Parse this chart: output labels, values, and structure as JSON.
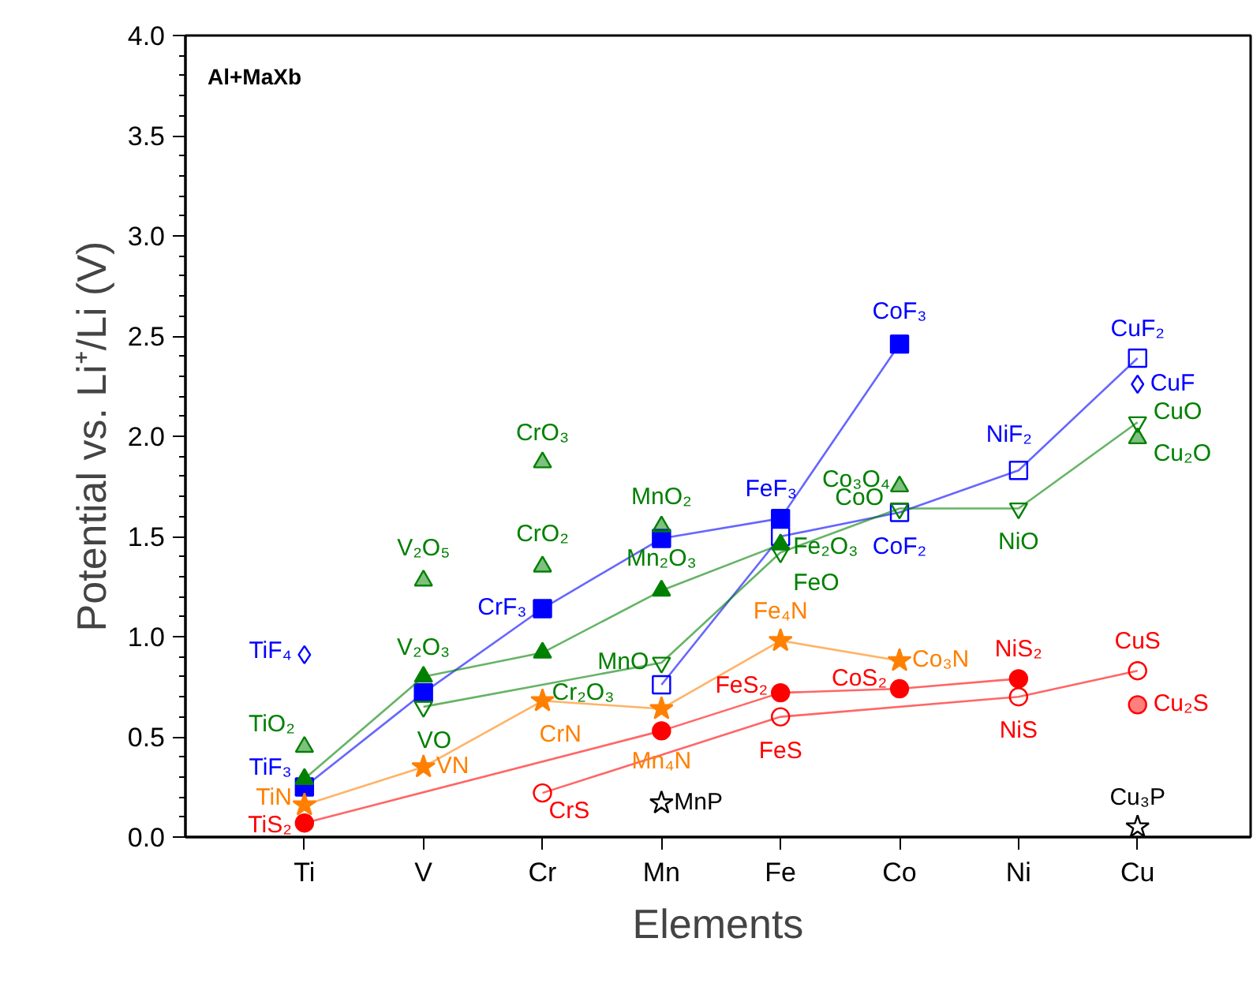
{
  "chart_data": {
    "type": "scatter",
    "xlabel": "Elements",
    "ylabel": "Potential vs. Li⁺/Li (V)",
    "categories": [
      "Ti",
      "V",
      "Cr",
      "Mn",
      "Fe",
      "Co",
      "Ni",
      "Cu"
    ],
    "ylim": [
      0,
      4
    ],
    "yticks": [
      {
        "value": 0,
        "label": "0.0"
      },
      {
        "value": 0.5,
        "label": "0.5"
      },
      {
        "value": 1,
        "label": "1.0"
      },
      {
        "value": 1.5,
        "label": "1.5"
      },
      {
        "value": 2,
        "label": "2.0"
      },
      {
        "value": 2.5,
        "label": "2.5"
      },
      {
        "value": 3,
        "label": "3.0"
      },
      {
        "value": 3.5,
        "label": "3.5"
      },
      {
        "value": 4,
        "label": "4.0"
      }
    ],
    "grid": false,
    "series": [
      {
        "type": "line",
        "marker": "square",
        "color": "#0000ff",
        "values": [
          0.25,
          0.72,
          1.14,
          1.49,
          1.59,
          2.46,
          null,
          null
        ]
      },
      {
        "type": "line",
        "marker": "square",
        "color": "#0000ff",
        "x": [
          "Mn",
          "Fe",
          "Co",
          "Ni",
          "Cu"
        ],
        "values": [
          0.76,
          1.5,
          1.62,
          1.83,
          2.39
        ]
      },
      {
        "type": "scatter",
        "marker": "diamond",
        "color": "#0000ff",
        "x": [
          "Ti",
          "Cu"
        ],
        "values": [
          0.91,
          2.26
        ]
      },
      {
        "type": "line",
        "marker": "triangle",
        "color": "#008000",
        "x": [
          "Ti",
          "V",
          "Cr",
          "Mn",
          "Fe"
        ],
        "values": [
          0.29,
          0.8,
          0.92,
          1.23,
          1.46
        ]
      },
      {
        "type": "line",
        "marker": "triangle",
        "color": "#008000",
        "x": [
          "V",
          "Mn",
          "Fe",
          "Co",
          "Ni",
          "Cu"
        ],
        "values": [
          0.65,
          0.87,
          1.42,
          1.64,
          1.64,
          2.07
        ]
      },
      {
        "type": "scatter",
        "marker": "triangle",
        "color": "#008000",
        "x": [
          "Ti",
          "V",
          "Cr",
          "Cr",
          "Mn",
          "Co",
          "Cu"
        ],
        "values": [
          0.45,
          1.28,
          1.87,
          1.35,
          1.55,
          1.75,
          1.99
        ]
      },
      {
        "type": "line",
        "marker": "star",
        "color": "#ff8000",
        "x": [
          "Ti",
          "V",
          "Cr",
          "Mn",
          "Fe",
          "Co"
        ],
        "values": [
          0.16,
          0.35,
          0.68,
          0.64,
          0.98,
          0.88
        ]
      },
      {
        "type": "line",
        "marker": "circle",
        "color": "#ff0000",
        "x": [
          "Ti",
          "Mn",
          "Fe",
          "Co",
          "Ni"
        ],
        "values": [
          0.07,
          0.53,
          0.72,
          0.74,
          0.79
        ]
      },
      {
        "type": "line",
        "marker": "circle",
        "color": "#ff0000",
        "x": [
          "Cr",
          "Fe",
          "Ni",
          "Cu"
        ],
        "values": [
          0.22,
          0.6,
          0.7,
          0.83
        ]
      },
      {
        "type": "scatter",
        "marker": "circle",
        "color": "#ff0000",
        "x": [
          "Cu"
        ],
        "values": [
          0.66
        ]
      },
      {
        "type": "scatter",
        "marker": "star",
        "color": "#000000",
        "x": [
          "Mn",
          "Cu"
        ],
        "values": [
          0.17,
          0.05
        ]
      }
    ],
    "annotations": [
      "Al+MaXb",
      {
        "text": "TiF₄",
        "x": "Ti",
        "y": 0.91
      },
      {
        "text": "TiF₃",
        "x": "Ti",
        "y": 0.25
      },
      {
        "text": "TiO₂",
        "x": "Ti",
        "y": 0.45
      },
      {
        "text": "TiN",
        "x": "Ti",
        "y": 0.16
      },
      {
        "text": "TiS₂",
        "x": "Ti",
        "y": 0.07
      },
      {
        "text": "V₂O₅",
        "x": "V",
        "y": 1.28
      },
      {
        "text": "V₂O₃",
        "x": "V",
        "y": 0.8
      },
      {
        "text": "VO",
        "x": "V",
        "y": 0.65
      },
      {
        "text": "VN",
        "x": "V",
        "y": 0.35
      },
      {
        "text": "CrO₃",
        "x": "Cr",
        "y": 1.87
      },
      {
        "text": "CrO₂",
        "x": "Cr",
        "y": 1.35
      },
      {
        "text": "CrF₃",
        "x": "Cr",
        "y": 1.14
      },
      {
        "text": "Cr₂O₃",
        "x": "Cr",
        "y": 0.92
      },
      {
        "text": "CrN",
        "x": "Cr",
        "y": 0.68
      },
      {
        "text": "CrS",
        "x": "Cr",
        "y": 0.22
      },
      {
        "text": "MnO₂",
        "x": "Mn",
        "y": 1.55
      },
      {
        "text": "Mn₂O₃",
        "x": "Mn",
        "y": 1.23
      },
      {
        "text": "MnO",
        "x": "Mn",
        "y": 0.87
      },
      {
        "text": "Mn₄N",
        "x": "Mn",
        "y": 0.64
      },
      {
        "text": "MnP",
        "x": "Mn",
        "y": 0.17
      },
      {
        "text": "FeF₃",
        "x": "Fe",
        "y": 1.59
      },
      {
        "text": "Fe₂O₃",
        "x": "Fe",
        "y": 1.46
      },
      {
        "text": "FeO",
        "x": "Fe",
        "y": 1.42
      },
      {
        "text": "Fe₄N",
        "x": "Fe",
        "y": 0.98
      },
      {
        "text": "FeS₂",
        "x": "Fe",
        "y": 0.72
      },
      {
        "text": "FeS",
        "x": "Fe",
        "y": 0.6
      },
      {
        "text": "CoF₃",
        "x": "Co",
        "y": 2.46
      },
      {
        "text": "Co₃O₄",
        "x": "Co",
        "y": 1.75
      },
      {
        "text": "CoO",
        "x": "Co",
        "y": 1.64
      },
      {
        "text": "CoF₂",
        "x": "Co",
        "y": 1.62
      },
      {
        "text": "Co₃N",
        "x": "Co",
        "y": 0.88
      },
      {
        "text": "CoS₂",
        "x": "Co",
        "y": 0.74
      },
      {
        "text": "NiF₂",
        "x": "Ni",
        "y": 1.83
      },
      {
        "text": "NiO",
        "x": "Ni",
        "y": 1.64
      },
      {
        "text": "NiS₂",
        "x": "Ni",
        "y": 0.79
      },
      {
        "text": "NiS",
        "x": "Ni",
        "y": 0.7
      },
      {
        "text": "CuF₂",
        "x": "Cu",
        "y": 2.39
      },
      {
        "text": "CuF",
        "x": "Cu",
        "y": 2.26
      },
      {
        "text": "CuO",
        "x": "Cu",
        "y": 2.07
      },
      {
        "text": "Cu₂O",
        "x": "Cu",
        "y": 1.99
      },
      {
        "text": "CuS",
        "x": "Cu",
        "y": 0.83
      },
      {
        "text": "Cu₂S",
        "x": "Cu",
        "y": 0.66
      },
      {
        "text": "Cu₃P",
        "x": "Cu",
        "y": 0.05
      }
    ]
  }
}
